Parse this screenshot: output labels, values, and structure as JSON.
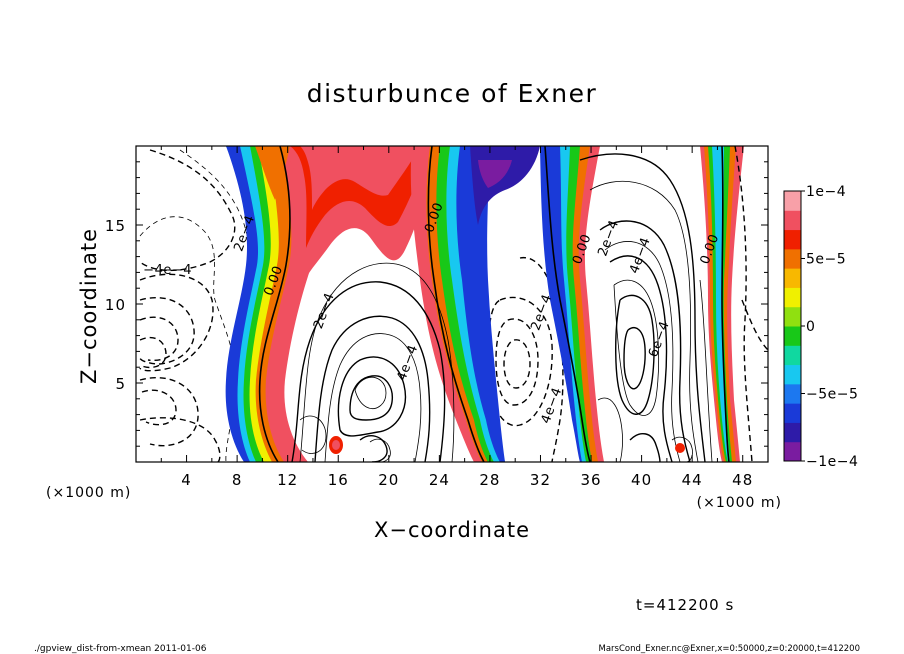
{
  "chart_data": {
    "type": "contour",
    "title": "disturbunce of Exner",
    "xlabel": "X−coordinate",
    "ylabel": "Z−coordinate",
    "x_unit": "(×1000 m)",
    "z_unit": "(×1000 m)",
    "xlim": [
      0,
      50
    ],
    "ylim": [
      0,
      20
    ],
    "xticks": [
      "4",
      "8",
      "12",
      "16",
      "20",
      "24",
      "28",
      "32",
      "36",
      "40",
      "44",
      "48"
    ],
    "yticks": [
      "5",
      "10",
      "15"
    ],
    "colorbar": {
      "range": [
        -0.0001,
        0.0001
      ],
      "tick_labels": [
        "1e−4",
        "5e−5",
        "0",
        "−5e−5",
        "−1e−4"
      ],
      "colors": [
        "#7a1ca0",
        "#2e1ba8",
        "#1a3ad8",
        "#1c78f0",
        "#18c8f0",
        "#10d8a0",
        "#18c818",
        "#90e010",
        "#f0f000",
        "#f8b800",
        "#f07000",
        "#f02000",
        "#f05060",
        "#f8a0a8"
      ]
    },
    "contour_labels": [
      {
        "text": "−4e−4",
        "x": 2.5,
        "z": 12.2
      },
      {
        "text": "2e−4",
        "x": 8.5,
        "z": 14.5
      },
      {
        "text": "0.00",
        "x": 10.8,
        "z": 11.5
      },
      {
        "text": "2e−4",
        "x": 14.8,
        "z": 9.6
      },
      {
        "text": "4e−4",
        "x": 21.4,
        "z": 6.3
      },
      {
        "text": "0.00",
        "x": 23.5,
        "z": 15.5
      },
      {
        "text": "2e−4",
        "x": 32,
        "z": 9.5
      },
      {
        "text": "4e−4",
        "x": 32.8,
        "z": 3.6
      },
      {
        "text": "0.00",
        "x": 35.2,
        "z": 13.5
      },
      {
        "text": "2e−4",
        "x": 37.3,
        "z": 14.2
      },
      {
        "text": "4e−4",
        "x": 39.8,
        "z": 13.1
      },
      {
        "text": "6e−4",
        "x": 41.3,
        "z": 7.8
      },
      {
        "text": "0.00",
        "x": 45.3,
        "z": 13.5
      }
    ]
  },
  "time_label": "t=412200 s",
  "footer_left": "./gpview_dist-from-xmean  2011-01-06",
  "footer_right": "MarsCond_Exner.nc@Exner,x=0:50000,z=0:20000,t=412200"
}
